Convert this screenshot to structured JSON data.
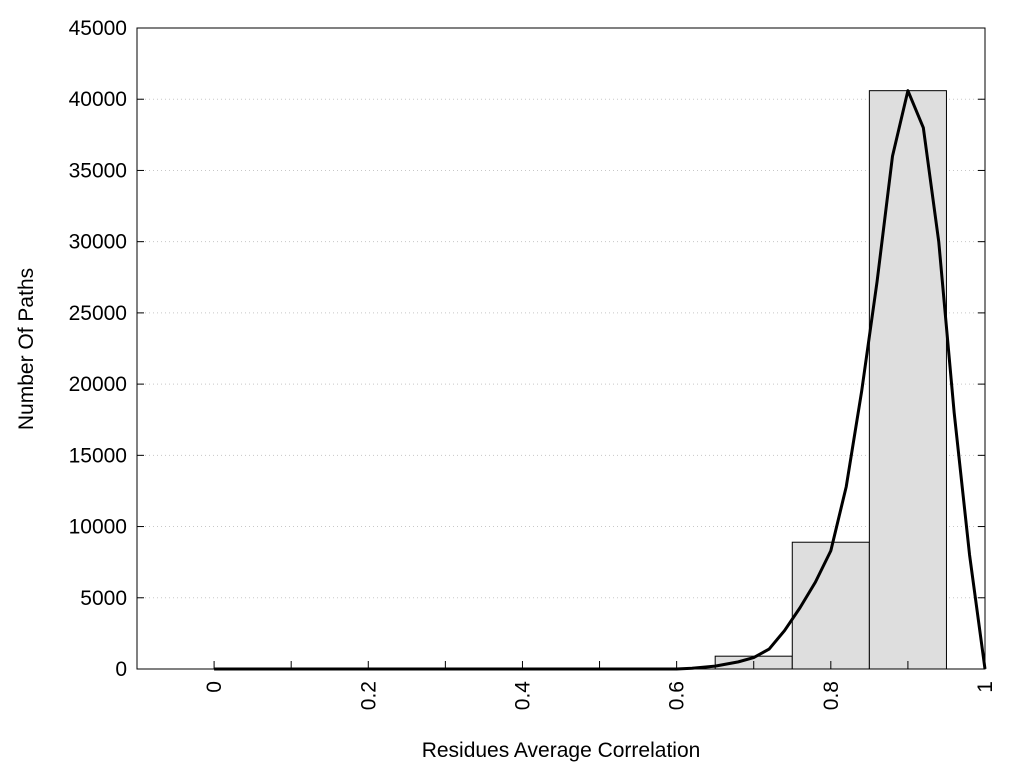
{
  "chart_data": {
    "type": "bar",
    "title": "",
    "xlabel": "Residues Average Correlation",
    "ylabel": "Number Of Paths",
    "xlim": [
      -0.1,
      1
    ],
    "ylim": [
      0,
      45000
    ],
    "x_ticks": [
      0,
      0.2,
      0.4,
      0.6,
      0.8,
      1
    ],
    "x_tick_labels": [
      "0",
      "0.2",
      "0.4",
      "0.6",
      "0.8",
      "1"
    ],
    "x_minor_ticks": [
      0.1,
      0.3,
      0.5,
      0.7,
      0.9
    ],
    "y_ticks": [
      0,
      5000,
      10000,
      15000,
      20000,
      25000,
      30000,
      35000,
      40000,
      45000
    ],
    "y_tick_labels": [
      "0",
      "5000",
      "10000",
      "15000",
      "20000",
      "25000",
      "30000",
      "35000",
      "40000",
      "45000"
    ],
    "grid": {
      "y": true,
      "x": false
    },
    "bin_width": 0.1,
    "bins": [
      {
        "x": 0.0,
        "value": 0
      },
      {
        "x": 0.1,
        "value": 0
      },
      {
        "x": 0.2,
        "value": 0
      },
      {
        "x": 0.3,
        "value": 0
      },
      {
        "x": 0.4,
        "value": 0
      },
      {
        "x": 0.5,
        "value": 0
      },
      {
        "x": 0.6,
        "value": 0
      },
      {
        "x": 0.7,
        "value": 900
      },
      {
        "x": 0.8,
        "value": 8900
      },
      {
        "x": 0.9,
        "value": 40600
      }
    ],
    "fit_curve": {
      "type": "line",
      "points": [
        [
          0.0,
          0
        ],
        [
          0.1,
          0
        ],
        [
          0.2,
          0
        ],
        [
          0.3,
          0
        ],
        [
          0.4,
          0
        ],
        [
          0.5,
          0
        ],
        [
          0.6,
          0
        ],
        [
          0.62,
          50
        ],
        [
          0.65,
          200
        ],
        [
          0.68,
          500
        ],
        [
          0.7,
          800
        ],
        [
          0.72,
          1400
        ],
        [
          0.74,
          2700
        ],
        [
          0.76,
          4300
        ],
        [
          0.78,
          6100
        ],
        [
          0.8,
          8300
        ],
        [
          0.82,
          12800
        ],
        [
          0.84,
          19500
        ],
        [
          0.86,
          27200
        ],
        [
          0.88,
          36000
        ],
        [
          0.9,
          40600
        ],
        [
          0.92,
          38000
        ],
        [
          0.94,
          30000
        ],
        [
          0.96,
          18000
        ],
        [
          0.98,
          8000
        ],
        [
          1.0,
          0
        ]
      ]
    },
    "colors": {
      "bar_fill": "#dedede",
      "bar_stroke": "#000000",
      "curve": "#000000",
      "grid": "#c8c8c8"
    }
  }
}
